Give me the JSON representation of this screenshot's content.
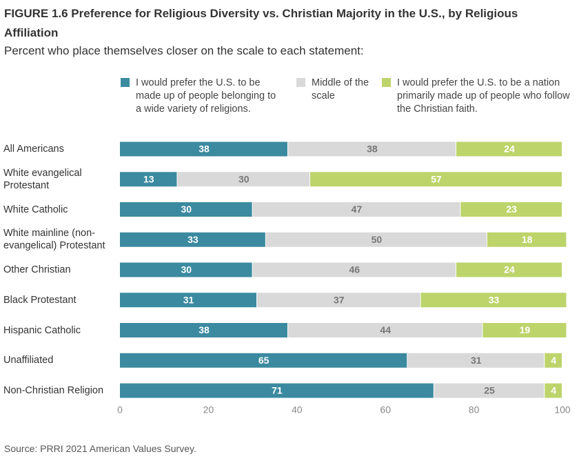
{
  "chart_data": {
    "type": "stacked-barh",
    "title": "FIGURE 1.6 Preference for Religious Diversity vs. Christian Majority in the U.S., by Religious Affiliation",
    "subtitle": "Percent who place themselves closer on the scale to each statement:",
    "source": "Source: PRRI 2021 American Values Survey.",
    "categories": [
      "All Americans",
      "White evangelical Protestant",
      "White Catholic",
      "White mainline (non-evangelical) Protestant",
      "Other Christian",
      "Black Protestant",
      "Hispanic Catholic",
      "Unaffiliated",
      "Non-Christian Religion"
    ],
    "series": [
      {
        "name": "I would prefer the U.S. to be made up of people belonging to a wide variety of religions.",
        "color": "#3b8aa0",
        "label_color": "#ffffff",
        "values": [
          38,
          13,
          30,
          33,
          30,
          31,
          38,
          65,
          71
        ]
      },
      {
        "name": "Middle of the scale",
        "color": "#d9d9d9",
        "label_color": "#777777",
        "values": [
          38,
          30,
          47,
          50,
          46,
          37,
          44,
          31,
          25
        ]
      },
      {
        "name": "I would prefer the U.S. to be a nation primarily made up of people who follow the Christian faith.",
        "color": "#bdd46b",
        "label_color": "#ffffff",
        "values": [
          24,
          57,
          23,
          18,
          24,
          33,
          19,
          4,
          4
        ]
      }
    ],
    "xlim": [
      0,
      100
    ],
    "xticks": [
      0,
      20,
      40,
      60,
      80,
      100
    ]
  }
}
